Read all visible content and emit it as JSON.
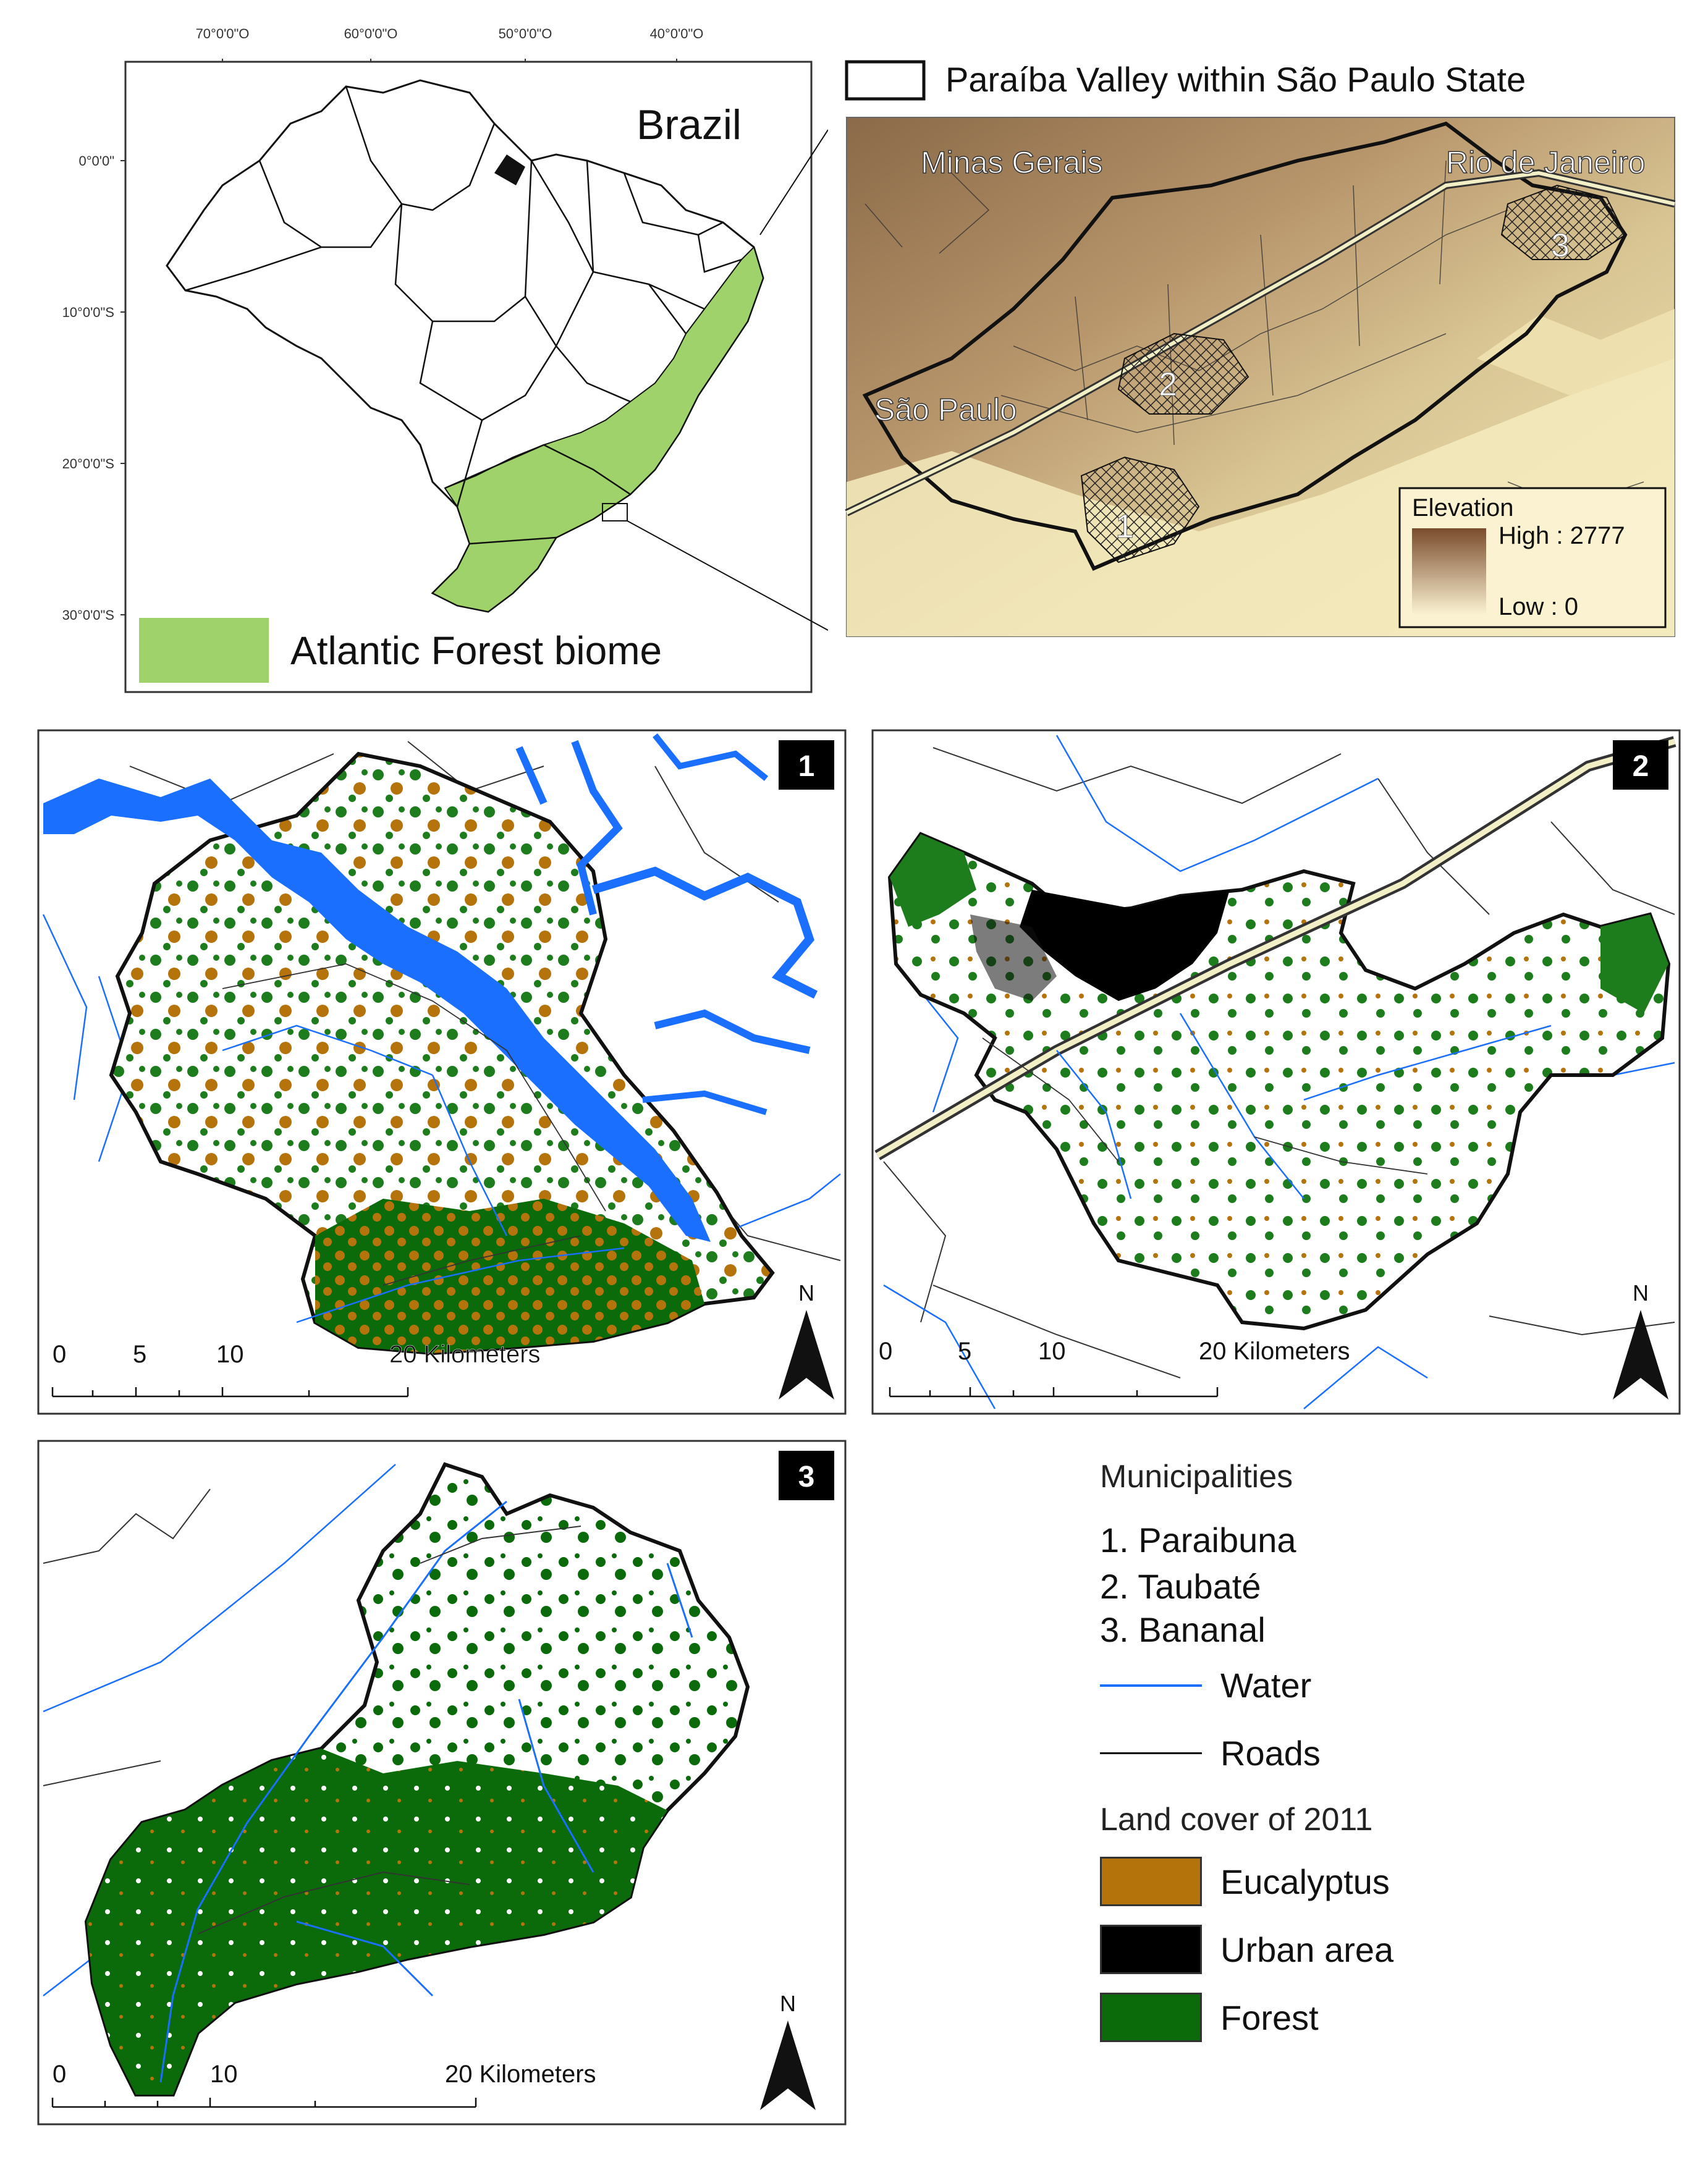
{
  "brazil_map": {
    "title": "Brazil",
    "legend_label": "Atlantic Forest biome",
    "longitude_ticks": [
      "70°0'0\"O",
      "60°0'0\"O",
      "50°0'0\"O",
      "40°0'0\"O"
    ],
    "latitude_ticks": [
      "0°0'0\"",
      "10°0'0\"S",
      "20°0'0\"S",
      "30°0'0\"S"
    ],
    "colors": {
      "biome": "#9fd26a"
    }
  },
  "valley_map": {
    "title": "Paraíba Valley within São Paulo State",
    "state_labels": [
      "Minas Gerais",
      "Rio de Janeiro",
      "São Paulo"
    ],
    "municipality_markers": [
      "1",
      "2",
      "3"
    ],
    "elevation_legend": {
      "title": "Elevation",
      "high": "High : 2777",
      "low": "Low : 0"
    }
  },
  "panels": [
    {
      "number": "1",
      "scale_ticks": [
        "0",
        "5",
        "10",
        "20 Kilometers"
      ],
      "north": "N"
    },
    {
      "number": "2",
      "scale_ticks": [
        "0",
        "5",
        "10",
        "20 Kilometers"
      ],
      "north": "N"
    },
    {
      "number": "3",
      "scale_ticks": [
        "0",
        "10",
        "20 Kilometers"
      ],
      "north": "N"
    }
  ],
  "legend": {
    "municipalities_title": "Municipalities",
    "municipalities": [
      "1. Paraibuna",
      "2. Taubaté",
      "3. Bananal"
    ],
    "water": "Water",
    "roads": "Roads",
    "landcover_title": "Land cover of 2011",
    "classes": [
      {
        "label": "Eucalyptus",
        "color": "#b5730c"
      },
      {
        "label": "Urban area",
        "color": "#000000"
      },
      {
        "label": "Forest",
        "color": "#0b6b0b"
      }
    ],
    "colors": {
      "water": "#1a6fff",
      "roads": "#000000"
    }
  }
}
